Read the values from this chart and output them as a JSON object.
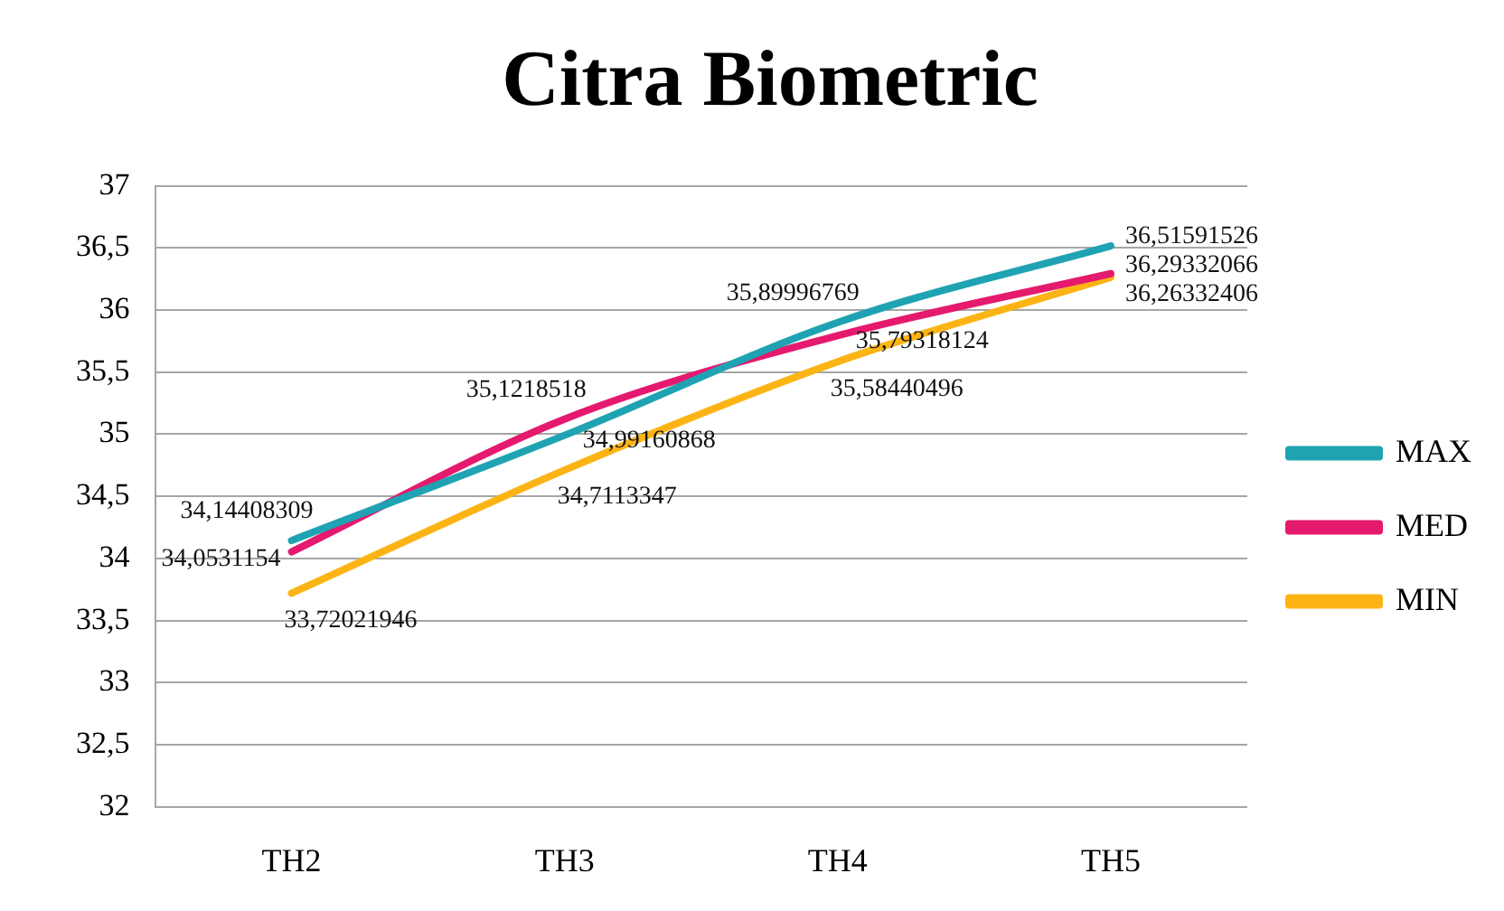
{
  "chart_data": {
    "type": "line",
    "title": "Citra Biometric",
    "categories": [
      "TH2",
      "TH3",
      "TH4",
      "TH5"
    ],
    "series": [
      {
        "name": "MAX",
        "color": "#1fa3b3",
        "values": [
          34.14408309,
          34.99160868,
          35.89996769,
          36.51591526
        ],
        "value_labels": [
          "34,14408309",
          "34,99160868",
          "35,89996769",
          "36,51591526"
        ]
      },
      {
        "name": "MED",
        "color": "#e5196e",
        "values": [
          34.0531154,
          35.1218518,
          35.79318124,
          36.29332066
        ],
        "value_labels": [
          "34,0531154",
          "35,1218518",
          "35,79318124",
          "36,29332066"
        ]
      },
      {
        "name": "MIN",
        "color": "#fcb415",
        "values": [
          33.72021946,
          34.7113347,
          35.58440496,
          36.26332406
        ],
        "value_labels": [
          "33,72021946",
          "34,7113347",
          "35,58440496",
          "36,26332406"
        ]
      }
    ],
    "ylim": [
      32,
      37
    ],
    "yticks": [
      32,
      {
        "value": 32.5,
        "label": "32,5"
      },
      33,
      {
        "value": 33.5,
        "label": "33,5"
      },
      34,
      {
        "value": 34.5,
        "label": "34,5"
      },
      35,
      {
        "value": 35.5,
        "label": "35,5"
      },
      36,
      {
        "value": 36.5,
        "label": "36,5"
      },
      37
    ],
    "grid": "y",
    "legend": "right",
    "marker": "none"
  }
}
